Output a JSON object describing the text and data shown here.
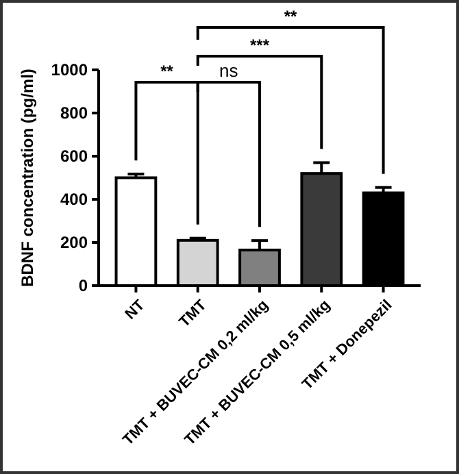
{
  "chart_data": {
    "type": "bar",
    "ylabel": "BDNF concentration (pg/ml)",
    "categories": [
      "NT",
      "TMT",
      "TMT + BUVEC-CM 0,2 ml/kg",
      "TMT + BUVEC-CM 0,5 ml/kg",
      "TMT + Donepezil"
    ],
    "values": [
      500,
      210,
      165,
      520,
      430
    ],
    "errors": [
      17,
      10,
      44,
      50,
      25
    ],
    "colors": [
      "#ffffff",
      "#d4d4d4",
      "#808080",
      "#3a3a3a",
      "#000000"
    ],
    "ylim": [
      0,
      1000
    ],
    "yticks": [
      0,
      200,
      400,
      600,
      800,
      1000
    ],
    "annotations": [
      "**",
      "ns",
      "***",
      "**"
    ]
  }
}
